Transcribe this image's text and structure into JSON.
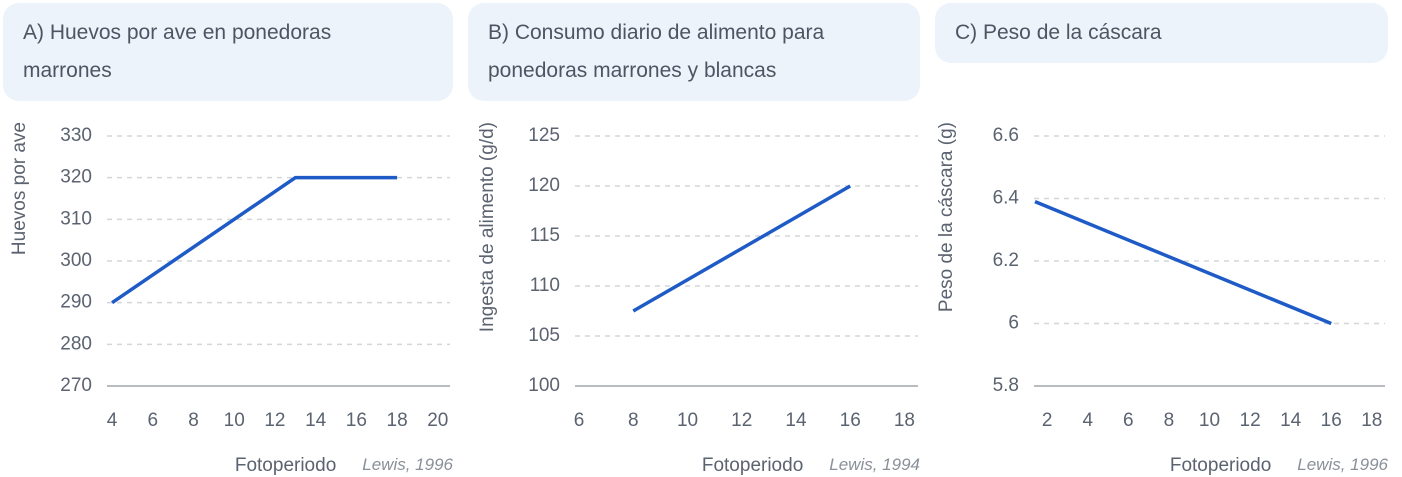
{
  "chart_data": [
    {
      "type": "line",
      "title": "A) Huevos por ave en ponedoras marrones",
      "xlabel": "Fotoperiodo",
      "ylabel": "Huevos por ave",
      "source": "Lewis, 1996",
      "x": [
        4,
        13,
        18
      ],
      "series": [
        {
          "name": "Huevos por ave",
          "color": "#1f5bc6",
          "values": [
            290,
            320,
            320
          ]
        }
      ],
      "xlim": [
        3.75,
        20.6
      ],
      "ylim": [
        270,
        330
      ],
      "xticks": [
        4,
        6,
        8,
        10,
        12,
        14,
        16,
        18,
        20
      ],
      "yticks": [
        270,
        280,
        290,
        300,
        310,
        320,
        330
      ],
      "grid": true
    },
    {
      "type": "line",
      "title": "B) Consumo diario de alimento para ponedoras marrones y blancas",
      "xlabel": "Fotoperiodo",
      "ylabel": "Ingesta de alimento (g/d)",
      "source": "Lewis, 1994",
      "x": [
        8,
        16
      ],
      "series": [
        {
          "name": "Ingesta de alimento",
          "color": "#1f5bc6",
          "values": [
            107.5,
            120
          ]
        }
      ],
      "xlim": [
        5.85,
        18.5
      ],
      "ylim": [
        100,
        125
      ],
      "xticks": [
        6,
        8,
        10,
        12,
        14,
        16,
        18
      ],
      "yticks": [
        100,
        105,
        110,
        115,
        120,
        125
      ],
      "grid": true
    },
    {
      "type": "line",
      "title": "C) Peso de la cáscara",
      "xlabel": "Fotoperiodo",
      "ylabel": "Peso de la cáscara (g)",
      "source": "Lewis, 1996",
      "x": [
        1.4,
        16
      ],
      "series": [
        {
          "name": "Peso de la cáscara",
          "color": "#1f5bc6",
          "values": [
            6.39,
            6
          ]
        }
      ],
      "xlim": [
        1.35,
        18.65
      ],
      "ylim": [
        5.8,
        6.6
      ],
      "xticks": [
        2,
        4,
        6,
        8,
        10,
        12,
        14,
        16,
        18
      ],
      "yticks": [
        5.8,
        6,
        6.2,
        6.4,
        6.6
      ],
      "grid": true
    }
  ]
}
